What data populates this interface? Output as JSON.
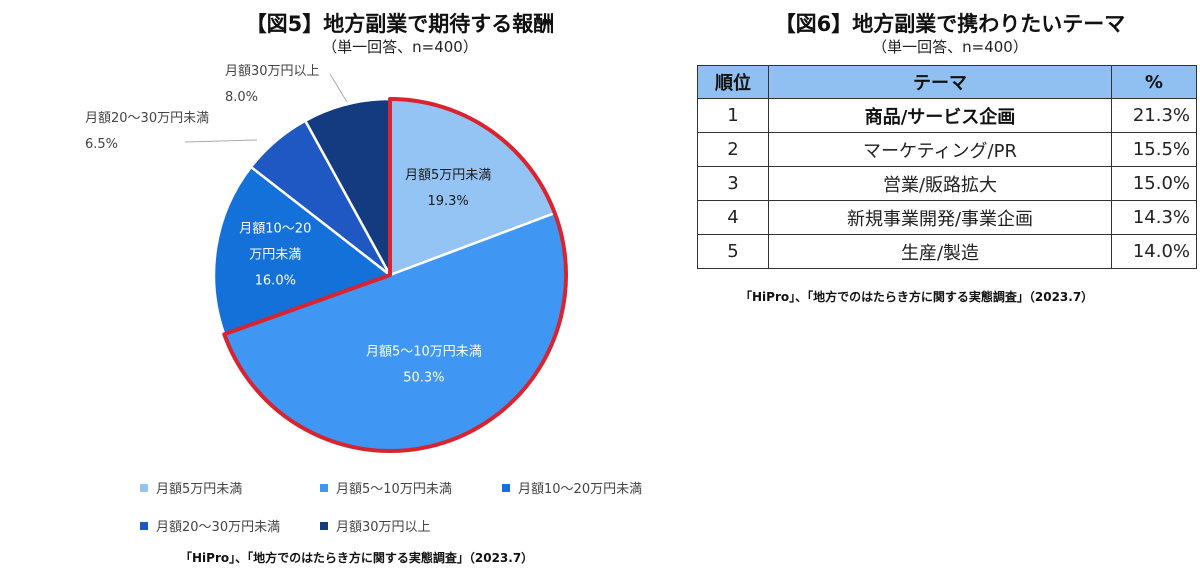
{
  "fig5": {
    "title": "【図5】地方副業で期待する報酬",
    "subtitle": "（単一回答、n=400）",
    "source": "「HiPro」、「地方でのはたらき方に関する実態調査」（2023.7）"
  },
  "fig6": {
    "title": "【図6】地方副業で携わりたいテーマ",
    "subtitle": "（単一回答、n=400）",
    "source": "「HiPro」、「地方でのはたらき方に関する実態調査」（2023.7）"
  },
  "chart_data": [
    {
      "type": "pie",
      "title": "【図5】地方副業で期待する報酬",
      "subtitle": "（単一回答、n=400）",
      "highlighted_range": [
        "月額5万円未満",
        "月額5〜10万円未満"
      ],
      "highlight_color": "#d9232e",
      "slices": [
        {
          "name": "月額5万円未満",
          "label_lines": [
            "月額5万円未満"
          ],
          "value": 19.3,
          "value_label": "19.3%",
          "color": "#94c4f3"
        },
        {
          "name": "月額5〜10万円未満",
          "label_lines": [
            "月額5〜10万円未満"
          ],
          "value": 50.3,
          "value_label": "50.3%",
          "color": "#3f97f3"
        },
        {
          "name": "月額10〜20万円未満",
          "label_lines": [
            "月額10〜20",
            "万円未満"
          ],
          "value": 16.0,
          "value_label": "16.0%",
          "color": "#1471d9"
        },
        {
          "name": "月額20〜30万円未満",
          "label_lines": [
            "月額20〜30万円未満"
          ],
          "value": 6.5,
          "value_label": "6.5%",
          "color": "#1f58c2"
        },
        {
          "name": "月額30万円以上",
          "label_lines": [
            "月額30万円以上"
          ],
          "value": 8.0,
          "value_label": "8.0%",
          "color": "#143a80"
        }
      ],
      "legend": [
        "月額5万円未満",
        "月額5〜10万円未満",
        "月額10〜20万円未満",
        "月額20〜30万円未満",
        "月額30万円以上"
      ],
      "legend_placement": "bottom"
    },
    {
      "type": "table",
      "title": "【図6】地方副業で携わりたいテーマ",
      "subtitle": "（単一回答、n=400）",
      "headers": [
        "順位",
        "テーマ",
        "%"
      ],
      "header_color": "#8fc0f1",
      "rows": [
        {
          "rank": "1",
          "theme": "商品/サービス企画",
          "pct": "21.3%",
          "value": 21.3
        },
        {
          "rank": "2",
          "theme": "マーケティング/PR",
          "pct": "15.5%",
          "value": 15.5
        },
        {
          "rank": "3",
          "theme": "営業/販路拡大",
          "pct": "15.0%",
          "value": 15.0
        },
        {
          "rank": "4",
          "theme": "新規事業開発/事業企画",
          "pct": "14.3%",
          "value": 14.3
        },
        {
          "rank": "5",
          "theme": "生産/製造",
          "pct": "14.0%",
          "value": 14.0
        }
      ]
    }
  ]
}
